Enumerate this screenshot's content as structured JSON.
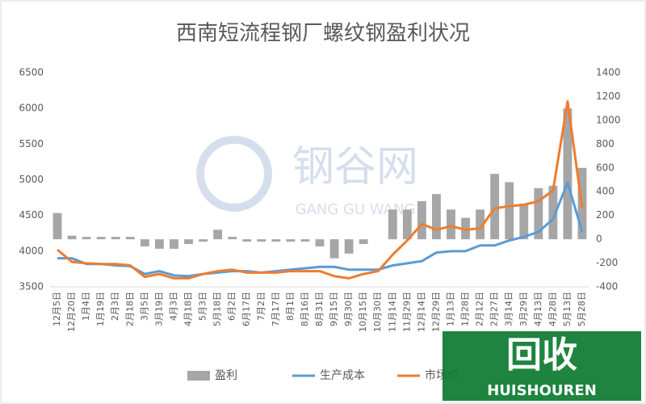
{
  "chart_data": {
    "type": "combo",
    "title": "西南短流程钢厂螺纹钢盈利状况",
    "watermark": [
      "钢谷网",
      "GANG GU WANG"
    ],
    "badge": [
      "回收",
      "HUISHOUREN"
    ],
    "categories": [
      "12月5日",
      "12月20日",
      "1月4日",
      "1月19日",
      "2月3日",
      "2月18日",
      "3月5日",
      "3月19日",
      "4月3日",
      "4月18日",
      "5月3日",
      "5月18日",
      "6月2日",
      "6月17日",
      "7月2日",
      "7月17日",
      "8月1日",
      "8月16日",
      "8月31日",
      "9月15日",
      "9月30日",
      "10月15日",
      "10月30日",
      "11月14日",
      "11月29日",
      "12月14日",
      "12月29日",
      "1月13日",
      "1月28日",
      "2月12日",
      "2月27日",
      "3月14日",
      "3月29日",
      "4月13日",
      "4月28日",
      "5月13日",
      "5月28日"
    ],
    "series": [
      {
        "name": "盈利",
        "kind": "bar",
        "axis": "y2",
        "color": "#a6a6a6",
        "values": [
          220,
          30,
          20,
          20,
          20,
          20,
          -60,
          -80,
          -80,
          -40,
          -20,
          80,
          20,
          -20,
          -20,
          -20,
          -20,
          -20,
          -60,
          -160,
          -120,
          -40,
          0,
          250,
          250,
          320,
          380,
          250,
          180,
          250,
          550,
          480,
          300,
          430,
          450,
          1100,
          600
        ]
      },
      {
        "name": "生产成本",
        "kind": "line",
        "axis": "y",
        "color": "#5b9bd5",
        "values": [
          3900,
          3900,
          3820,
          3820,
          3800,
          3790,
          3680,
          3720,
          3660,
          3650,
          3680,
          3700,
          3720,
          3720,
          3700,
          3720,
          3740,
          3760,
          3780,
          3780,
          3740,
          3740,
          3740,
          3800,
          3830,
          3860,
          3980,
          4000,
          4000,
          4080,
          4080,
          4150,
          4200,
          4270,
          4450,
          4960,
          4270
        ]
      },
      {
        "name": "市场价",
        "kind": "line",
        "axis": "y",
        "color": "#ed7d31",
        "values": [
          4020,
          3850,
          3830,
          3820,
          3820,
          3800,
          3640,
          3680,
          3620,
          3620,
          3680,
          3720,
          3740,
          3700,
          3700,
          3700,
          3720,
          3720,
          3720,
          3650,
          3620,
          3680,
          3720,
          3950,
          4150,
          4380,
          4300,
          4350,
          4300,
          4320,
          4600,
          4630,
          4650,
          4700,
          4850,
          6100,
          4600
        ]
      }
    ],
    "ylim": [
      3500,
      6500
    ],
    "yticks": [
      3500,
      4000,
      4500,
      5000,
      5500,
      6000,
      6500
    ],
    "y2lim": [
      -400,
      1400
    ],
    "y2ticks": [
      -400,
      -200,
      0,
      200,
      400,
      600,
      800,
      1000,
      1200,
      1400
    ]
  }
}
